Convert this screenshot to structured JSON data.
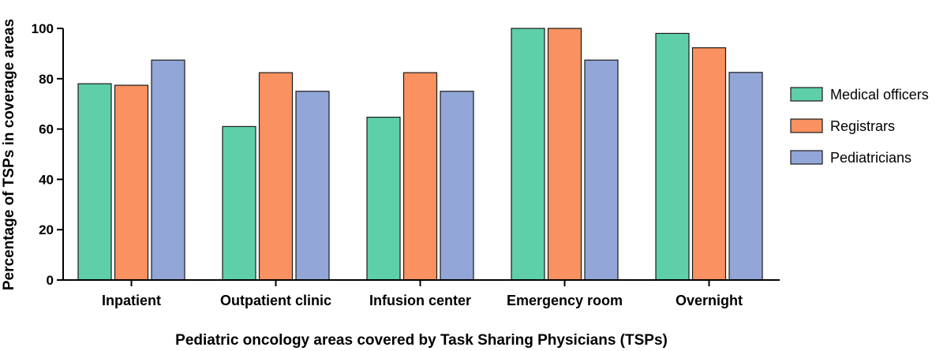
{
  "chart_data": {
    "type": "bar",
    "title": "",
    "xlabel": "Pediatric oncology areas covered by Task Sharing Physicians (TSPs)",
    "ylabel": "Percentage of  TSPs in coverage areas",
    "ylim": [
      0,
      100
    ],
    "yticks": [
      0,
      20,
      40,
      60,
      80,
      100
    ],
    "categories": [
      "Inpatient",
      "Outpatient clinic",
      "Infusion center",
      "Emergency room",
      "Overnight"
    ],
    "series": [
      {
        "name": "Medical officers",
        "color": "#5fcfaa",
        "values": [
          78,
          61,
          64.7,
          100,
          98
        ]
      },
      {
        "name": "Registrars",
        "color": "#f99160",
        "values": [
          77.4,
          82.4,
          82.4,
          100,
          92.3
        ]
      },
      {
        "name": "Pediatricians",
        "color": "#93a6d8",
        "values": [
          87.4,
          75,
          75,
          87.4,
          82.5
        ]
      }
    ],
    "legend_position": "right",
    "grid": false
  }
}
